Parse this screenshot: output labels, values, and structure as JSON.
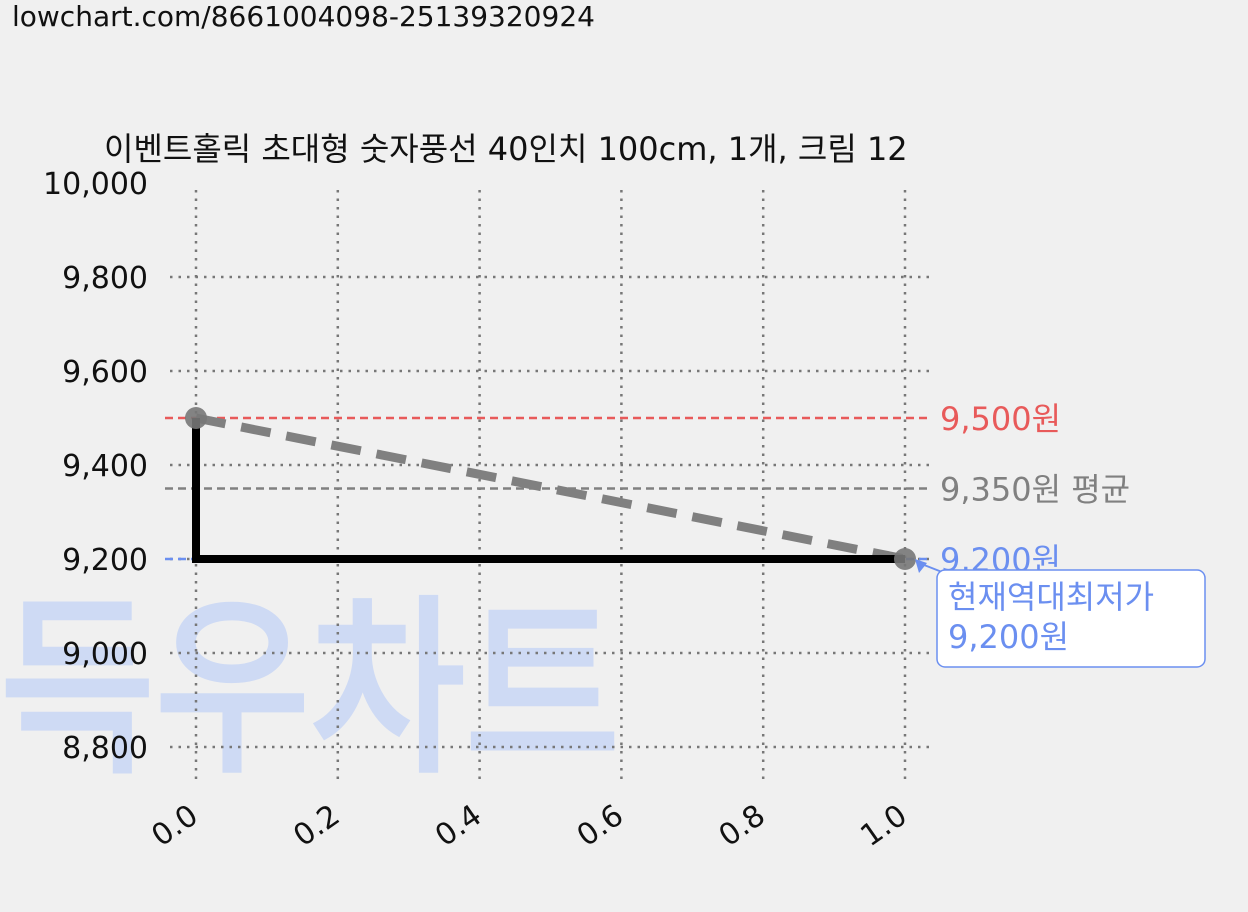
{
  "url": "lowchart.com/8661004098-25139320924",
  "watermark": "득우차트",
  "colors": {
    "background": "#f0f0f0",
    "max_line": "#e85a5a",
    "avg_line": "#808080",
    "min_line": "#6b8ff0",
    "price_line": "#000000",
    "trend_line": "#808080",
    "watermark": "#c9d7f5"
  },
  "chart_data": {
    "type": "line",
    "title": "이벤트홀릭 초대형 숫자풍선 40인치 100cm, 1개, 크림 12",
    "x_ticks": [
      "0.0",
      "0.2",
      "0.4",
      "0.6",
      "0.8",
      "1.0"
    ],
    "y_ticks": [
      "8,800",
      "9,000",
      "9,200",
      "9,400",
      "9,600",
      "9,800",
      "10,000"
    ],
    "xlim": [
      0.0,
      1.0
    ],
    "ylim": [
      8800,
      10000
    ],
    "grid": true,
    "series": [
      {
        "x": [
          0.0,
          0.0,
          1.0
        ],
        "y": [
          9500,
          9200,
          9200
        ],
        "style": "step-solid"
      },
      {
        "x": [
          0.0,
          1.0
        ],
        "y": [
          9500,
          9200
        ],
        "style": "dashed-trend"
      }
    ],
    "reference_lines": [
      {
        "value": 9500,
        "label": "9,500원"
      },
      {
        "value": 9350,
        "label": "9,350원 평균"
      },
      {
        "value": 9200,
        "label": "9,200원"
      }
    ],
    "annotation": {
      "line1": "현재역대최저가",
      "line2": "9,200원",
      "x": 1.0,
      "y": 9200
    }
  }
}
